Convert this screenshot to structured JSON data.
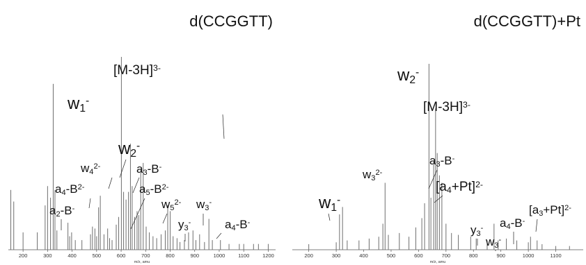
{
  "chart_data": [
    {
      "type": "bar",
      "title": "d(CCGGTT)",
      "xlabel": "m/z, amu",
      "xlim": [
        140,
        1230
      ],
      "ylim": [
        0,
        100
      ],
      "xticks": [
        200,
        300,
        400,
        500,
        600,
        700,
        800,
        900,
        1000,
        1100,
        1200
      ],
      "peaks": [
        {
          "mz": 150,
          "intensity": 31
        },
        {
          "mz": 162,
          "intensity": 25
        },
        {
          "mz": 200,
          "intensity": 9
        },
        {
          "mz": 258,
          "intensity": 9
        },
        {
          "mz": 290,
          "intensity": 23
        },
        {
          "mz": 300,
          "intensity": 33
        },
        {
          "mz": 312,
          "intensity": 27
        },
        {
          "mz": 323,
          "intensity": 86
        },
        {
          "mz": 330,
          "intensity": 31
        },
        {
          "mz": 338,
          "intensity": 10
        },
        {
          "mz": 383,
          "intensity": 14
        },
        {
          "mz": 390,
          "intensity": 7
        },
        {
          "mz": 398,
          "intensity": 9
        },
        {
          "mz": 413,
          "intensity": 5
        },
        {
          "mz": 440,
          "intensity": 5
        },
        {
          "mz": 475,
          "intensity": 8
        },
        {
          "mz": 483,
          "intensity": 12
        },
        {
          "mz": 493,
          "intensity": 11
        },
        {
          "mz": 500,
          "intensity": 7
        },
        {
          "mz": 508,
          "intensity": 22
        },
        {
          "mz": 515,
          "intensity": 28
        },
        {
          "mz": 530,
          "intensity": 8
        },
        {
          "mz": 545,
          "intensity": 11
        },
        {
          "mz": 553,
          "intensity": 6
        },
        {
          "mz": 563,
          "intensity": 5
        },
        {
          "mz": 580,
          "intensity": 13
        },
        {
          "mz": 590,
          "intensity": 17
        },
        {
          "mz": 601,
          "intensity": 100
        },
        {
          "mz": 610,
          "intensity": 30
        },
        {
          "mz": 620,
          "intensity": 26
        },
        {
          "mz": 630,
          "intensity": 30
        },
        {
          "mz": 638,
          "intensity": 55
        },
        {
          "mz": 645,
          "intensity": 33
        },
        {
          "mz": 655,
          "intensity": 17
        },
        {
          "mz": 665,
          "intensity": 20
        },
        {
          "mz": 672,
          "intensity": 18
        },
        {
          "mz": 680,
          "intensity": 42
        },
        {
          "mz": 690,
          "intensity": 45
        },
        {
          "mz": 702,
          "intensity": 12
        },
        {
          "mz": 715,
          "intensity": 9
        },
        {
          "mz": 730,
          "intensity": 7
        },
        {
          "mz": 745,
          "intensity": 6
        },
        {
          "mz": 763,
          "intensity": 8
        },
        {
          "mz": 780,
          "intensity": 10
        },
        {
          "mz": 790,
          "intensity": 23
        },
        {
          "mz": 800,
          "intensity": 20
        },
        {
          "mz": 812,
          "intensity": 7
        },
        {
          "mz": 828,
          "intensity": 6
        },
        {
          "mz": 840,
          "intensity": 4
        },
        {
          "mz": 858,
          "intensity": 5
        },
        {
          "mz": 875,
          "intensity": 9
        },
        {
          "mz": 893,
          "intensity": 10
        },
        {
          "mz": 905,
          "intensity": 5
        },
        {
          "mz": 920,
          "intensity": 8
        },
        {
          "mz": 940,
          "intensity": 4
        },
        {
          "mz": 958,
          "intensity": 16
        },
        {
          "mz": 972,
          "intensity": 5
        },
        {
          "mz": 1005,
          "intensity": 5
        },
        {
          "mz": 1040,
          "intensity": 3
        },
        {
          "mz": 1082,
          "intensity": 3
        },
        {
          "mz": 1100,
          "intensity": 3
        },
        {
          "mz": 1140,
          "intensity": 3
        },
        {
          "mz": 1160,
          "intensity": 3
        },
        {
          "mz": 1200,
          "intensity": 3
        }
      ],
      "annotations": [
        {
          "base": "w",
          "sub": "1",
          "sup": "-",
          "mz": 323
        },
        {
          "base": "[M-3H]",
          "sub": "",
          "sup": "3-",
          "mz": 601
        },
        {
          "base": "w",
          "sub": "2",
          "sup": "-",
          "mz": 638
        },
        {
          "base": "w",
          "sub": "4",
          "sup": "2-",
          "mz": 620
        },
        {
          "base": "a",
          "sub": "3",
          "sup": "",
          "suffix": "-B",
          "sup2": "-",
          "mz": 690
        },
        {
          "base": "a",
          "sub": "4",
          "sup": "",
          "suffix": "-B",
          "sup2": "2-",
          "mz": 515
        },
        {
          "base": "a",
          "sub": "5",
          "sup": "",
          "suffix": "-B",
          "sup2": "2-",
          "mz": 672
        },
        {
          "base": "w",
          "sub": "5",
          "sup": "2-",
          "mz": 790
        },
        {
          "base": "a",
          "sub": "2",
          "sup": "",
          "suffix": "-B",
          "sup2": "-",
          "mz": 383
        },
        {
          "base": "w",
          "sub": "3",
          "sup": "-",
          "mz": 958
        },
        {
          "base": "y",
          "sub": "3",
          "sup": "-",
          "mz": 893
        },
        {
          "base": "a",
          "sub": "4",
          "sup": "",
          "suffix": "-B",
          "sup2": "-",
          "mz": 1005
        }
      ]
    },
    {
      "type": "bar",
      "title": "d(CCGGTT)+Pt",
      "xlabel": "m/z, amu",
      "xlim": [
        140,
        1200
      ],
      "ylim": [
        0,
        100
      ],
      "xticks": [
        200,
        300,
        400,
        500,
        600,
        700,
        800,
        900,
        1000,
        1100
      ],
      "peaks": [
        {
          "mz": 200,
          "intensity": 3
        },
        {
          "mz": 300,
          "intensity": 4
        },
        {
          "mz": 312,
          "intensity": 19
        },
        {
          "mz": 323,
          "intensity": 23
        },
        {
          "mz": 340,
          "intensity": 5
        },
        {
          "mz": 383,
          "intensity": 5
        },
        {
          "mz": 420,
          "intensity": 6
        },
        {
          "mz": 455,
          "intensity": 7
        },
        {
          "mz": 470,
          "intensity": 14
        },
        {
          "mz": 478,
          "intensity": 36
        },
        {
          "mz": 490,
          "intensity": 8
        },
        {
          "mz": 530,
          "intensity": 9
        },
        {
          "mz": 565,
          "intensity": 7
        },
        {
          "mz": 590,
          "intensity": 12
        },
        {
          "mz": 612,
          "intensity": 17
        },
        {
          "mz": 622,
          "intensity": 25
        },
        {
          "mz": 638,
          "intensity": 100
        },
        {
          "mz": 645,
          "intensity": 28
        },
        {
          "mz": 655,
          "intensity": 48
        },
        {
          "mz": 662,
          "intensity": 76
        },
        {
          "mz": 668,
          "intensity": 52
        },
        {
          "mz": 676,
          "intensity": 40
        },
        {
          "mz": 685,
          "intensity": 36
        },
        {
          "mz": 700,
          "intensity": 14
        },
        {
          "mz": 720,
          "intensity": 9
        },
        {
          "mz": 745,
          "intensity": 8
        },
        {
          "mz": 790,
          "intensity": 7
        },
        {
          "mz": 810,
          "intensity": 6
        },
        {
          "mz": 850,
          "intensity": 5
        },
        {
          "mz": 875,
          "intensity": 14
        },
        {
          "mz": 890,
          "intensity": 5
        },
        {
          "mz": 920,
          "intensity": 6
        },
        {
          "mz": 958,
          "intensity": 5
        },
        {
          "mz": 1000,
          "intensity": 4
        },
        {
          "mz": 1008,
          "intensity": 7
        },
        {
          "mz": 1032,
          "intensity": 5
        },
        {
          "mz": 1050,
          "intensity": 3
        },
        {
          "mz": 1100,
          "intensity": 2
        },
        {
          "mz": 1150,
          "intensity": 2
        }
      ],
      "annotations": [
        {
          "base": "w",
          "sub": "2",
          "sup": "-",
          "mz": 638
        },
        {
          "base": "[M-3H]",
          "sub": "",
          "sup": "3-",
          "mz": 662
        },
        {
          "base": "a",
          "sub": "3",
          "sup": "",
          "suffix": "-B",
          "sup2": "-",
          "mz": 668
        },
        {
          "base": "w",
          "sub": "3",
          "sup": "2-",
          "mz": 478
        },
        {
          "base": "[a",
          "sub": "4",
          "sup": "",
          "suffix": "+Pt]",
          "sup2": "2-",
          "mz": 685
        },
        {
          "base": "w",
          "sub": "1",
          "sup": "-",
          "mz": 323
        },
        {
          "base": "y",
          "sub": "3",
          "sup": "-",
          "mz": 875
        },
        {
          "base": "a",
          "sub": "4",
          "sup": "",
          "suffix": "-B",
          "sup2": "-",
          "mz": 1008
        },
        {
          "base": "w",
          "sub": "3",
          "sup": "-",
          "mz": 958
        },
        {
          "base": "[a",
          "sub": "3",
          "sup": "",
          "suffix": "+Pt]",
          "sup2": "2-",
          "mz": 1032
        }
      ]
    }
  ]
}
